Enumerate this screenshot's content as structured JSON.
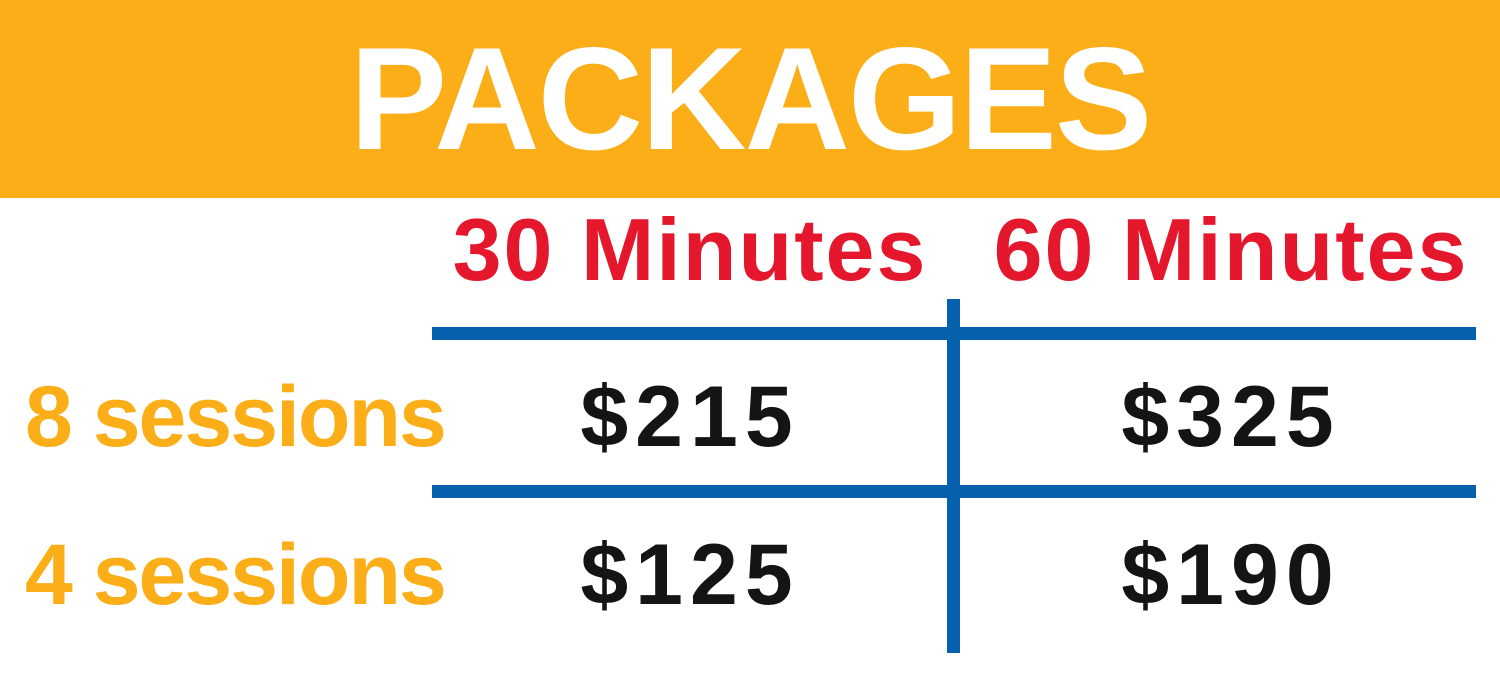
{
  "title": "PACKAGES",
  "pricing": {
    "column_headers": [
      "30 Minutes",
      "60 Minutes"
    ],
    "rows": [
      {
        "label": "8 sessions",
        "values": [
          "$215",
          "$325"
        ]
      },
      {
        "label": "4 sessions",
        "values": [
          "$125",
          "$190"
        ]
      }
    ]
  },
  "chart_data": {
    "type": "table",
    "title": "PACKAGES",
    "columns": [
      "",
      "30 Minutes",
      "60 Minutes"
    ],
    "rows": [
      [
        "8 sessions",
        "$215",
        "$325"
      ],
      [
        "4 sessions",
        "$125",
        "$190"
      ]
    ]
  },
  "colors": {
    "banner": "#FBAE17",
    "header_text": "#E4172C",
    "row_label": "#FBAE17",
    "line": "#0560AD",
    "value_text": "#141414",
    "title_text": "#FFFFFF",
    "bg": "#FFFFFF"
  }
}
